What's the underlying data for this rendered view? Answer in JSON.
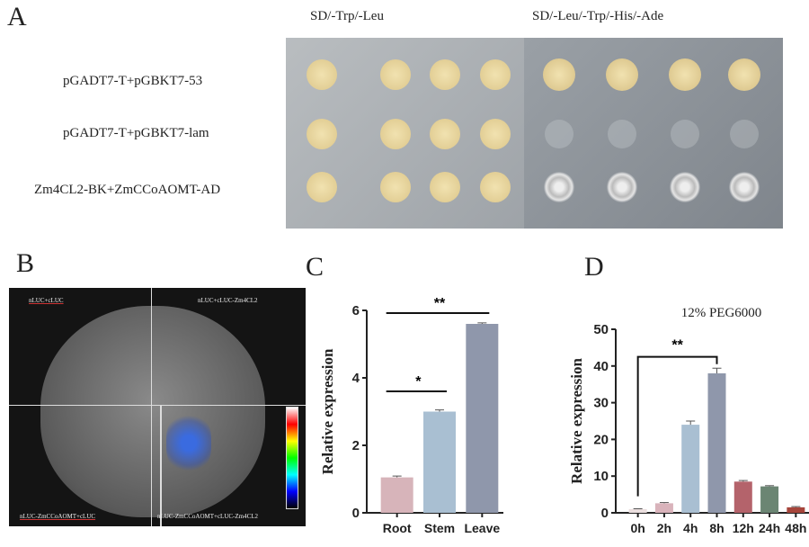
{
  "panels": {
    "a": "A",
    "b": "B",
    "c": "C",
    "d": "D"
  },
  "panel_a": {
    "columns": [
      "SD/-Trp/-Leu",
      "SD/-Leu/-Trp/-His/-Ade"
    ],
    "rows": [
      "pGADT7-T+pGBKT7-53",
      "pGADT7-T+pGBKT7-lam",
      "Zm4CL2-BK+ZmCCoAOMT-AD"
    ]
  },
  "panel_b": {
    "quadrants": [
      "nLUC+cLUC",
      "nLUC+cLUC-Zm4CL2",
      "nLUC-ZmCCoAOMT+cLUC",
      "nLUC-ZmCCoAOMT+cLUC-Zm4CL2"
    ]
  },
  "chart_data": [
    {
      "type": "bar",
      "categories": [
        "Root",
        "Stem",
        "Leave"
      ],
      "values": [
        1.05,
        3.0,
        5.6
      ],
      "errors": [
        0.04,
        0.05,
        0.03
      ],
      "colors": [
        "#d7b4ba",
        "#a9bfd2",
        "#8f97ab"
      ],
      "title": "",
      "xlabel": "",
      "ylabel": "Relative expression",
      "ylim": [
        0,
        6
      ],
      "yticks": [
        0,
        2,
        4,
        6
      ],
      "significance": [
        {
          "from": "Root",
          "to": "Stem",
          "label": "*"
        },
        {
          "from": "Root",
          "to": "Leave",
          "label": "**"
        }
      ]
    },
    {
      "type": "bar",
      "categories": [
        "0h",
        "2h",
        "4h",
        "8h",
        "12h",
        "24h",
        "48h"
      ],
      "values": [
        1,
        2.6,
        24,
        38,
        8.5,
        7.2,
        1.5
      ],
      "errors": [
        0.1,
        0.2,
        1,
        1.4,
        0.3,
        0.2,
        0.2
      ],
      "colors": [
        "#eadede",
        "#d9b3bb",
        "#a9bfd2",
        "#8f97ab",
        "#b4636b",
        "#6b8573",
        "#a6453b"
      ],
      "title": "12% PEG6000",
      "xlabel": "",
      "ylabel": "Relative expression",
      "ylim": [
        0,
        50
      ],
      "yticks": [
        0,
        10,
        20,
        30,
        40,
        50
      ],
      "significance": [
        {
          "from": "0h",
          "to": "8h",
          "label": "**"
        }
      ]
    }
  ]
}
